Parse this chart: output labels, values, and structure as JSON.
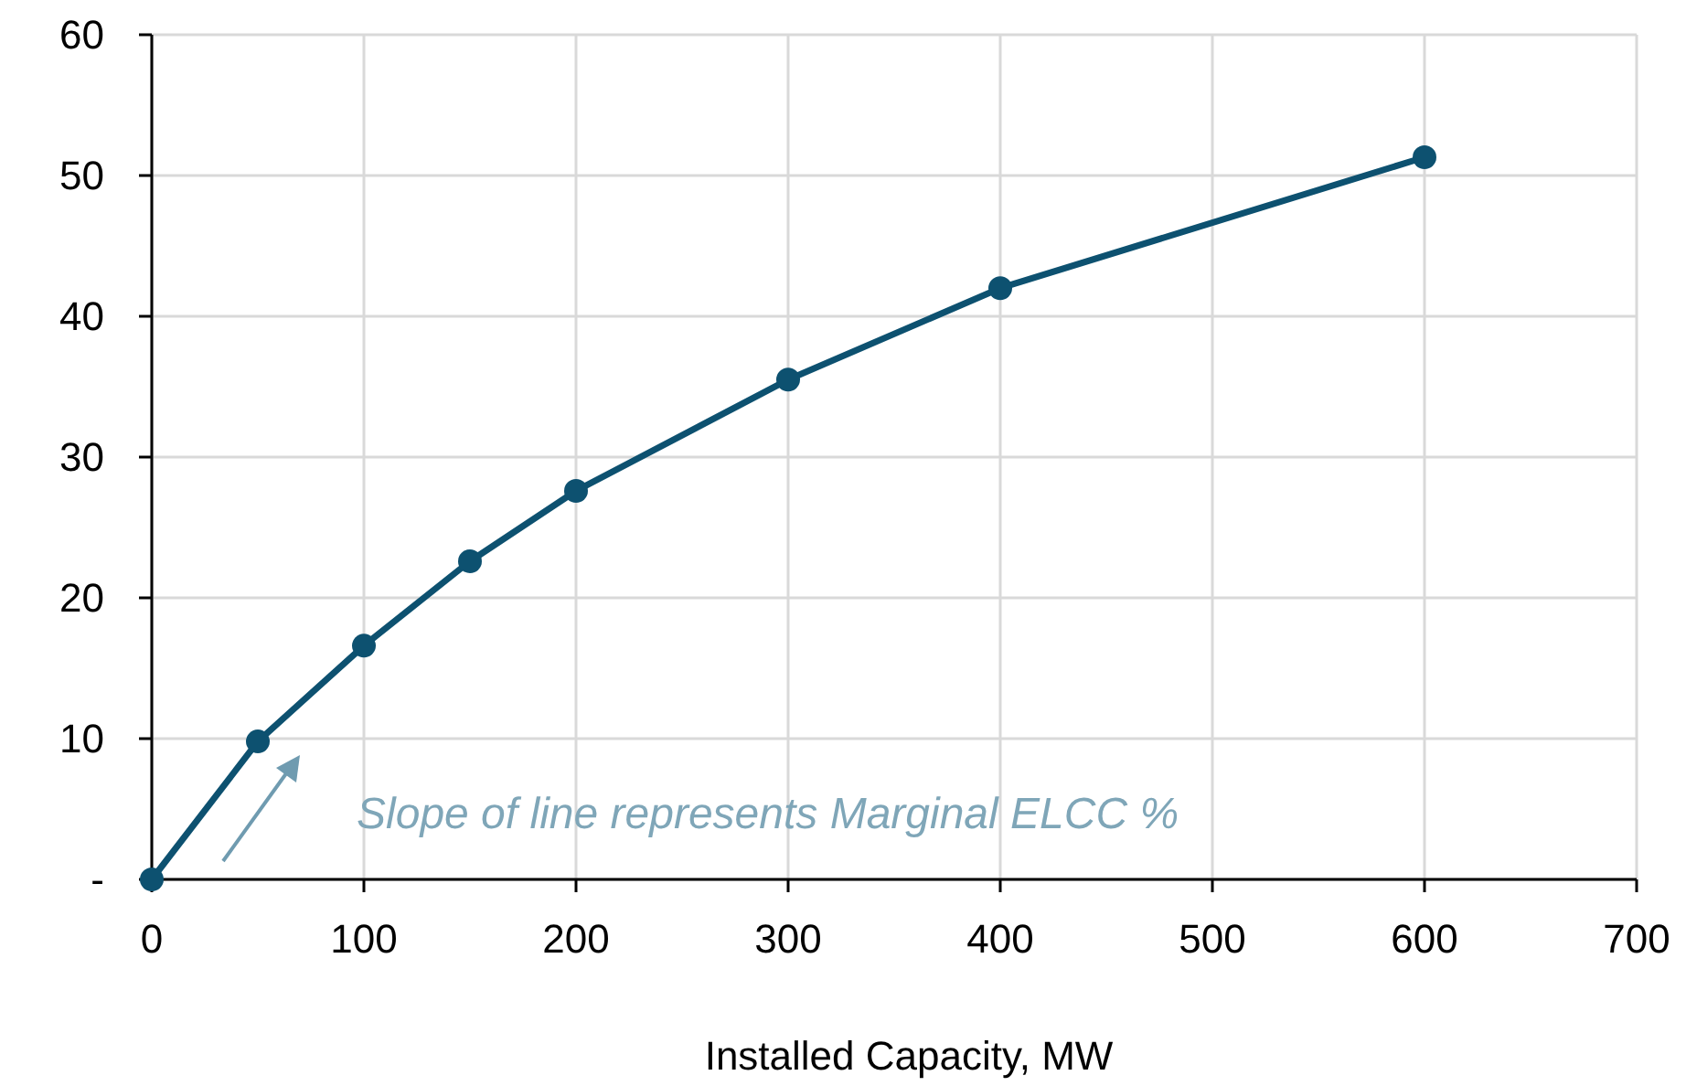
{
  "chart_data": {
    "type": "line",
    "xlabel": "Installed Capacity, MW",
    "x": [
      0,
      50,
      100,
      150,
      200,
      300,
      400,
      600
    ],
    "series": [
      {
        "color": "#0d5170",
        "values": [
          0,
          9.8,
          16.6,
          22.6,
          27.6,
          35.5,
          42,
          51.3
        ]
      }
    ],
    "xlim": [
      0,
      700
    ],
    "xticks": [
      0,
      100,
      200,
      300,
      400,
      500,
      600,
      700
    ],
    "ylim": [
      0,
      60
    ],
    "yticks": [
      {
        "value": 0,
        "label": "-"
      },
      10,
      20,
      30,
      40,
      50,
      60
    ],
    "grid": true,
    "marker": "circle",
    "line_style": "solid",
    "annotations": [
      "Slope of line represents Marginal ELCC %"
    ]
  }
}
